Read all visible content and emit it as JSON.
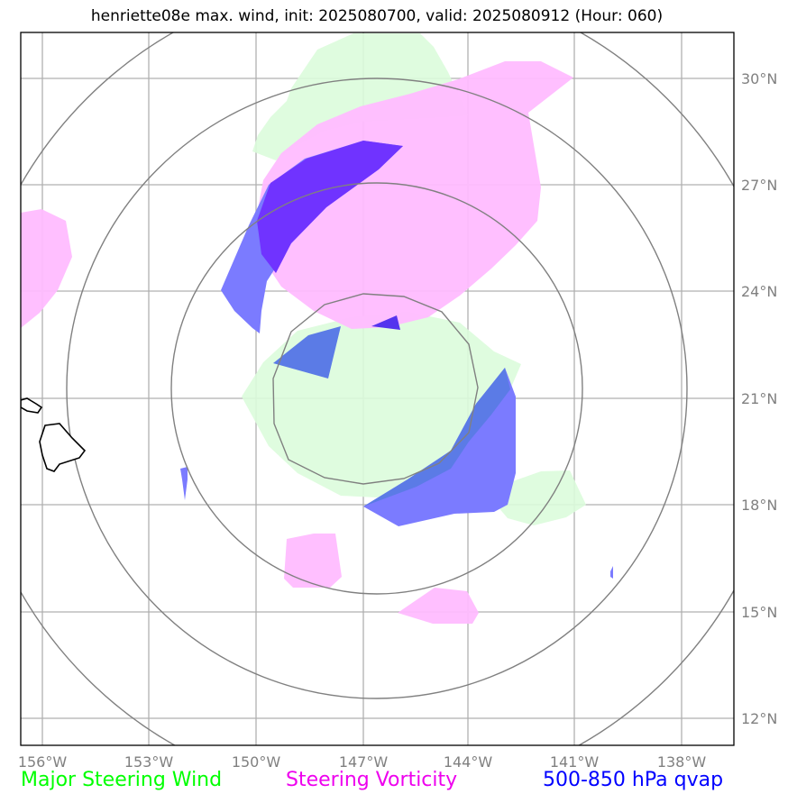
{
  "title": "henriette08e max. wind, init: 2025080700, valid: 2025080912 (Hour: 060)",
  "axes": {
    "lon_labels": [
      "156°W",
      "153°W",
      "150°W",
      "147°W",
      "144°W",
      "141°W",
      "138°W"
    ],
    "lat_labels": [
      "30°N",
      "27°N",
      "24°N",
      "21°N",
      "18°N",
      "15°N",
      "12°N"
    ]
  },
  "legend": [
    {
      "label": "Major Steering Wind",
      "color": "#00ff00"
    },
    {
      "label": "Steering Vorticity",
      "color": "#ee00ee"
    },
    {
      "label": "500-850 hPa qvap",
      "color": "#0000ff"
    }
  ],
  "colors": {
    "steering_wind_fill": "#dcfcdc",
    "steering_vorticity_fill": "#ffbcff",
    "qvap_fill": "#7b7bff",
    "qvap_overlap_fill": "#7033ff",
    "grid": "#b0b0b0",
    "range_rings": "#808080",
    "coastline": "#000000"
  }
}
